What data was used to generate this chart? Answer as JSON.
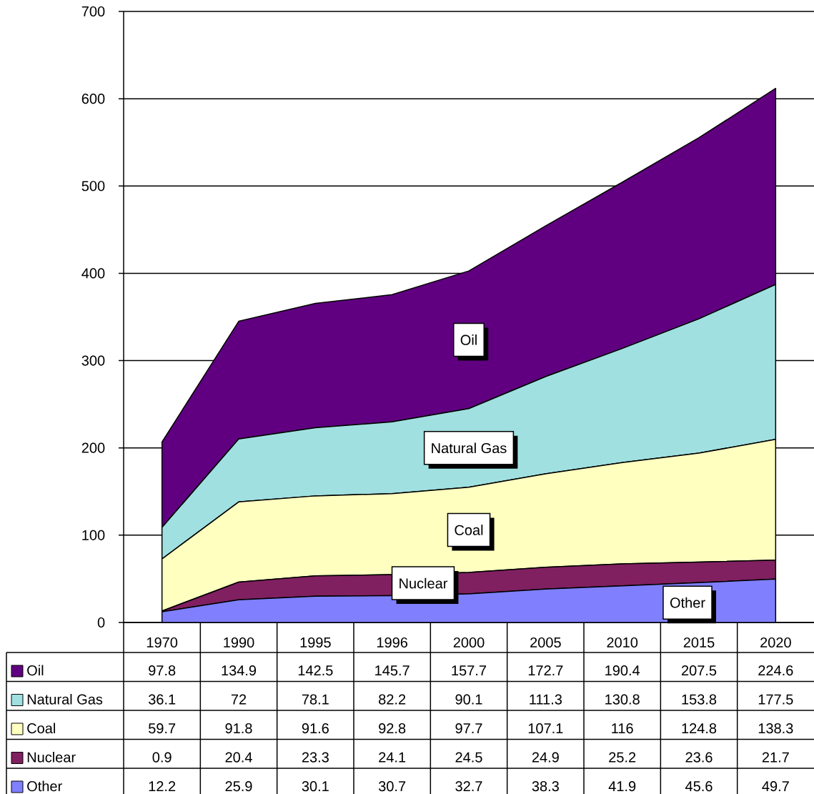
{
  "chart_data": {
    "type": "area",
    "stacked": true,
    "categories": [
      "1970",
      "1990",
      "1995",
      "1996",
      "2000",
      "2005",
      "2010",
      "2015",
      "2020"
    ],
    "series": [
      {
        "name": "Other",
        "color": "#8080ff",
        "values": [
          12.2,
          25.9,
          30.1,
          30.7,
          32.7,
          38.3,
          41.9,
          45.6,
          49.7
        ]
      },
      {
        "name": "Nuclear",
        "color": "#802060",
        "values": [
          0.9,
          20.4,
          23.3,
          24.1,
          24.5,
          24.9,
          25.2,
          23.6,
          21.7
        ]
      },
      {
        "name": "Coal",
        "color": "#ffffc0",
        "values": [
          59.7,
          91.8,
          91.6,
          92.8,
          97.7,
          107.1,
          116,
          124.8,
          138.3
        ]
      },
      {
        "name": "Natural Gas",
        "color": "#a0e0e0",
        "values": [
          36.1,
          72,
          78.1,
          82.2,
          90.1,
          111.3,
          130.8,
          153.8,
          177.5
        ]
      },
      {
        "name": "Oil",
        "color": "#600080",
        "values": [
          97.8,
          134.9,
          142.5,
          145.7,
          157.7,
          172.7,
          190.4,
          207.5,
          224.6
        ]
      }
    ],
    "ylim": [
      0,
      700
    ],
    "yticks": [
      0,
      100,
      200,
      300,
      400,
      500,
      600,
      700
    ],
    "grid": "y",
    "legend": "bottom",
    "data_labels": true
  }
}
